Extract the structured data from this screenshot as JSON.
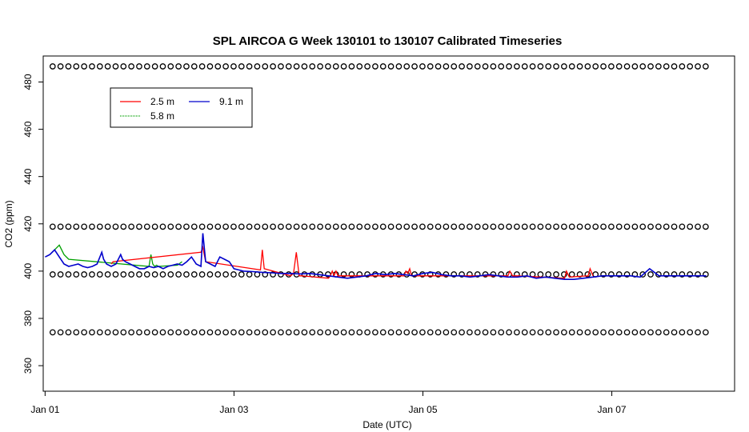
{
  "chart_data": {
    "type": "line",
    "title": "SPL AIRCOA G  Week 130101 to 130107  Calibrated Timeseries",
    "xlabel": "Date (UTC)",
    "ylabel": "CO2 (ppm)",
    "x_unit": "days",
    "xlim": [
      -0.02,
      7.3
    ],
    "ylim": [
      349.2,
      491
    ],
    "xticks": [
      {
        "x": 0,
        "label": "Jan 01"
      },
      {
        "x": 2,
        "label": "Jan 03"
      },
      {
        "x": 4,
        "label": "Jan 05"
      },
      {
        "x": 6,
        "label": "Jan 07"
      }
    ],
    "yticks": [
      360,
      380,
      400,
      420,
      440,
      460,
      480
    ],
    "legend": {
      "placement": "top-left",
      "entries": [
        {
          "name": "2.5 m",
          "color": "#ff0000"
        },
        {
          "name": "5.8 m",
          "color": "#00a000"
        },
        {
          "name": "9.1 m",
          "color": "#0000cc"
        }
      ]
    },
    "reference_point_levels": [
      486.6,
      418.8,
      398.6,
      374.1
    ],
    "reference_point_spacing_days": 0.0833,
    "reference_point_x_start": 0.08,
    "reference_point_x_end": 7.0,
    "series": [
      {
        "name": "9.1 m",
        "color": "#0000cc",
        "x": [
          0.0,
          0.05,
          0.1,
          0.15,
          0.2,
          0.25,
          0.3,
          0.35,
          0.4,
          0.45,
          0.5,
          0.55,
          0.6,
          0.62,
          0.65,
          0.7,
          0.75,
          0.8,
          0.82,
          0.85,
          0.9,
          0.95,
          1.0,
          1.05,
          1.1,
          1.15,
          1.2,
          1.25,
          1.3,
          1.35,
          1.4,
          1.45,
          1.5,
          1.55,
          1.6,
          1.65,
          1.67,
          1.7,
          1.75,
          1.8,
          1.85,
          1.9,
          1.95,
          2.0,
          2.05,
          2.1,
          2.2,
          2.3,
          2.4,
          2.5,
          2.6,
          2.7,
          2.8,
          2.9,
          3.0,
          3.1,
          3.2,
          3.3,
          3.4,
          3.5,
          3.6,
          3.7,
          3.8,
          3.9,
          4.0,
          4.1,
          4.2,
          4.3,
          4.4,
          4.5,
          4.6,
          4.7,
          4.8,
          4.9,
          5.0,
          5.1,
          5.2,
          5.3,
          5.4,
          5.5,
          5.6,
          5.7,
          5.8,
          5.9,
          6.0,
          6.1,
          6.2,
          6.3,
          6.4,
          6.5,
          6.6,
          6.7,
          6.8,
          6.9,
          7.0
        ],
        "y": [
          406,
          407,
          409,
          406,
          403,
          402,
          402.5,
          403,
          402,
          401.5,
          402,
          403,
          408,
          405,
          403,
          402,
          403,
          407,
          405,
          404,
          403,
          402,
          401,
          401,
          402,
          401.5,
          402,
          401,
          402,
          402.5,
          403,
          402.5,
          404,
          406,
          403,
          402,
          416,
          404,
          403,
          402,
          406,
          405,
          404,
          401,
          400.5,
          400,
          399.8,
          399.5,
          399.3,
          399,
          399,
          398.8,
          399,
          398.5,
          398,
          397.5,
          397,
          397.5,
          398,
          399,
          398.5,
          399,
          398.5,
          398,
          399,
          399.5,
          398.5,
          398,
          398,
          397.5,
          398,
          398.5,
          398,
          397.5,
          397.5,
          398,
          397,
          397.5,
          397,
          396.5,
          396.5,
          397,
          397.5,
          398,
          398,
          398,
          398,
          397.5,
          401,
          398,
          398,
          398,
          398,
          398,
          398
        ]
      },
      {
        "name": "5.8 m",
        "color": "#00a000",
        "x": [
          0.1,
          0.15,
          0.2,
          0.25,
          1.1,
          1.12,
          1.14,
          1.16,
          1.18,
          1.2,
          1.4,
          1.45
        ],
        "y": [
          409,
          411,
          407,
          405,
          402,
          407,
          403,
          402,
          402.5,
          402,
          402.5,
          404
        ]
      },
      {
        "name": "2.5 m",
        "color": "#ff0000",
        "x": [
          0.7,
          0.72,
          1.65,
          1.67,
          1.7,
          2.28,
          2.3,
          2.32,
          2.6,
          2.63,
          2.66,
          2.69,
          2.72,
          3.0,
          3.02,
          3.04,
          3.06,
          3.08,
          3.1,
          3.8,
          3.82,
          3.84,
          3.86,
          3.88,
          3.9,
          4.9,
          4.92,
          4.95,
          5.0,
          5.5,
          5.52,
          5.55,
          5.75,
          5.77,
          5.8
        ],
        "y": [
          403,
          404,
          408,
          410,
          404,
          400.5,
          409,
          401,
          398,
          399,
          408,
          398,
          398,
          397,
          398,
          400,
          398,
          400,
          398,
          398,
          400,
          399,
          401,
          398,
          398,
          398,
          400,
          398,
          398,
          397,
          400,
          397.5,
          398,
          401,
          398
        ]
      }
    ]
  }
}
